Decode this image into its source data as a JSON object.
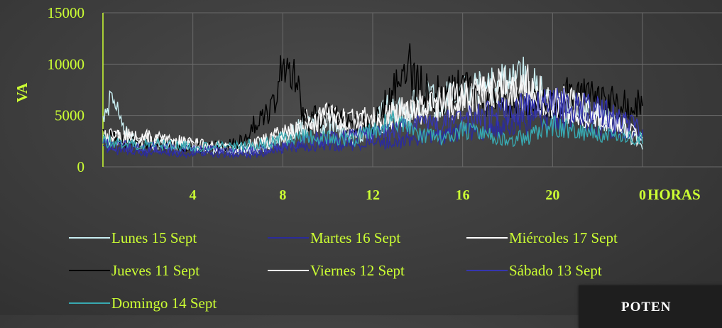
{
  "chart_data": {
    "type": "line",
    "ylabel": "VA",
    "xlabel": "HORAS",
    "ylim": [
      0,
      15000
    ],
    "y_ticks": [
      "0",
      "5000",
      "10000",
      "15000"
    ],
    "x_range_hours": [
      0,
      24
    ],
    "x_ticks": [
      {
        "hour": 4,
        "label": "4"
      },
      {
        "hour": 8,
        "label": "8"
      },
      {
        "hour": 12,
        "label": "12"
      },
      {
        "hour": 16,
        "label": "16"
      },
      {
        "hour": 20,
        "label": "20"
      },
      {
        "hour": 24,
        "label": "0"
      }
    ],
    "grid": true,
    "legend_position": "bottom",
    "series": [
      {
        "name": "Lunes 15 Sept",
        "color": "#c8eef2",
        "x": [
          0,
          0.5,
          1,
          1.5,
          2,
          3,
          4,
          5,
          6,
          7,
          7.5,
          8,
          9,
          10,
          11,
          12,
          12.5,
          13,
          13.5,
          14,
          15,
          16,
          17,
          18,
          19,
          20,
          21,
          22,
          23,
          23.5,
          24
        ],
        "y": [
          5500,
          6500,
          3500,
          2500,
          2200,
          2300,
          2000,
          1700,
          1500,
          1600,
          2200,
          3000,
          4000,
          4500,
          3000,
          3500,
          5500,
          6000,
          5000,
          6500,
          6500,
          7000,
          7500,
          8500,
          8500,
          5500,
          6000,
          5000,
          4000,
          3000,
          2000
        ]
      },
      {
        "name": "Martes 16 Sept",
        "color": "#2b2b9c",
        "x": [
          0,
          1,
          2,
          3,
          4,
          5,
          6,
          7,
          8,
          9,
          10,
          11,
          12,
          13,
          14,
          15,
          16,
          17,
          18,
          19,
          20,
          21,
          22,
          23,
          24
        ],
        "y": [
          1800,
          1500,
          1400,
          1300,
          1200,
          1200,
          1100,
          1300,
          1800,
          2000,
          2200,
          2100,
          2500,
          2300,
          2800,
          3000,
          3500,
          3500,
          4000,
          4500,
          5000,
          4500,
          4000,
          3500,
          3000
        ]
      },
      {
        "name": "Miércoles 17 Sept",
        "color": "#ffffff",
        "x": [
          0,
          1,
          2,
          3,
          4,
          5,
          6,
          7,
          8,
          9,
          10,
          11,
          12,
          13,
          14,
          15,
          16,
          17,
          18,
          19,
          20,
          21,
          22,
          23,
          24
        ],
        "y": [
          2500,
          3000,
          2800,
          2500,
          2300,
          2000,
          1800,
          2500,
          3200,
          4500,
          5000,
          4500,
          3800,
          5000,
          5500,
          6000,
          6500,
          7000,
          7500,
          7000,
          6000,
          5500,
          5000,
          4000,
          3000
        ]
      },
      {
        "name": "Jueves 11 Sept",
        "color": "#000000",
        "x": [
          0,
          1,
          2,
          3,
          4,
          5,
          6,
          6.5,
          7,
          7.5,
          8,
          8.3,
          8.6,
          9,
          10,
          11,
          12,
          13,
          13.5,
          14,
          15,
          16,
          17,
          18,
          19,
          20,
          21,
          22,
          23,
          24
        ],
        "y": [
          3000,
          2500,
          2300,
          2100,
          2000,
          2000,
          2200,
          3500,
          4500,
          5500,
          9500,
          10500,
          8000,
          4500,
          5000,
          4200,
          4000,
          7500,
          10000,
          8000,
          7000,
          7500,
          6500,
          6000,
          6000,
          6500,
          7000,
          6500,
          6000,
          6000
        ]
      },
      {
        "name": "Viernes 12 Sept",
        "color": "#f2f2f2",
        "x": [
          0,
          1,
          2,
          3,
          4,
          5,
          6,
          7,
          8,
          9,
          10,
          11,
          12,
          13,
          14,
          15,
          16,
          17,
          18,
          19,
          20,
          21,
          22,
          23,
          24
        ],
        "y": [
          3000,
          2800,
          2600,
          2400,
          2200,
          2000,
          1800,
          2000,
          3000,
          3800,
          4500,
          4200,
          4800,
          5200,
          5800,
          6200,
          6800,
          7200,
          7800,
          8000,
          6500,
          6000,
          5000,
          4000,
          2500
        ]
      },
      {
        "name": "Sábado 13 Sept",
        "color": "#3636b0",
        "x": [
          0,
          1,
          2,
          3,
          4,
          5,
          6,
          7,
          8,
          9,
          10,
          11,
          12,
          13,
          14,
          15,
          16,
          17,
          18,
          19,
          20,
          21,
          22,
          23,
          24
        ],
        "y": [
          2200,
          2000,
          1900,
          1800,
          1700,
          1600,
          1500,
          1700,
          2000,
          2500,
          2800,
          3000,
          3200,
          3500,
          4000,
          4200,
          4800,
          5000,
          5500,
          6000,
          6200,
          5800,
          5500,
          4500,
          3500
        ]
      },
      {
        "name": "Domingo 14 Sept",
        "color": "#38a8b0",
        "x": [
          0,
          1,
          2,
          3,
          4,
          5,
          6,
          7,
          8,
          9,
          10,
          11,
          12,
          13,
          14,
          15,
          16,
          17,
          18,
          19,
          20,
          21,
          22,
          23,
          24
        ],
        "y": [
          2500,
          2300,
          2200,
          2100,
          2000,
          1900,
          2000,
          2200,
          2800,
          3000,
          2800,
          2600,
          3500,
          4500,
          3000,
          2800,
          3500,
          3200,
          2500,
          3000,
          4000,
          3500,
          3200,
          3000,
          2800
        ]
      }
    ]
  },
  "callout": {
    "text": "POTEN"
  }
}
